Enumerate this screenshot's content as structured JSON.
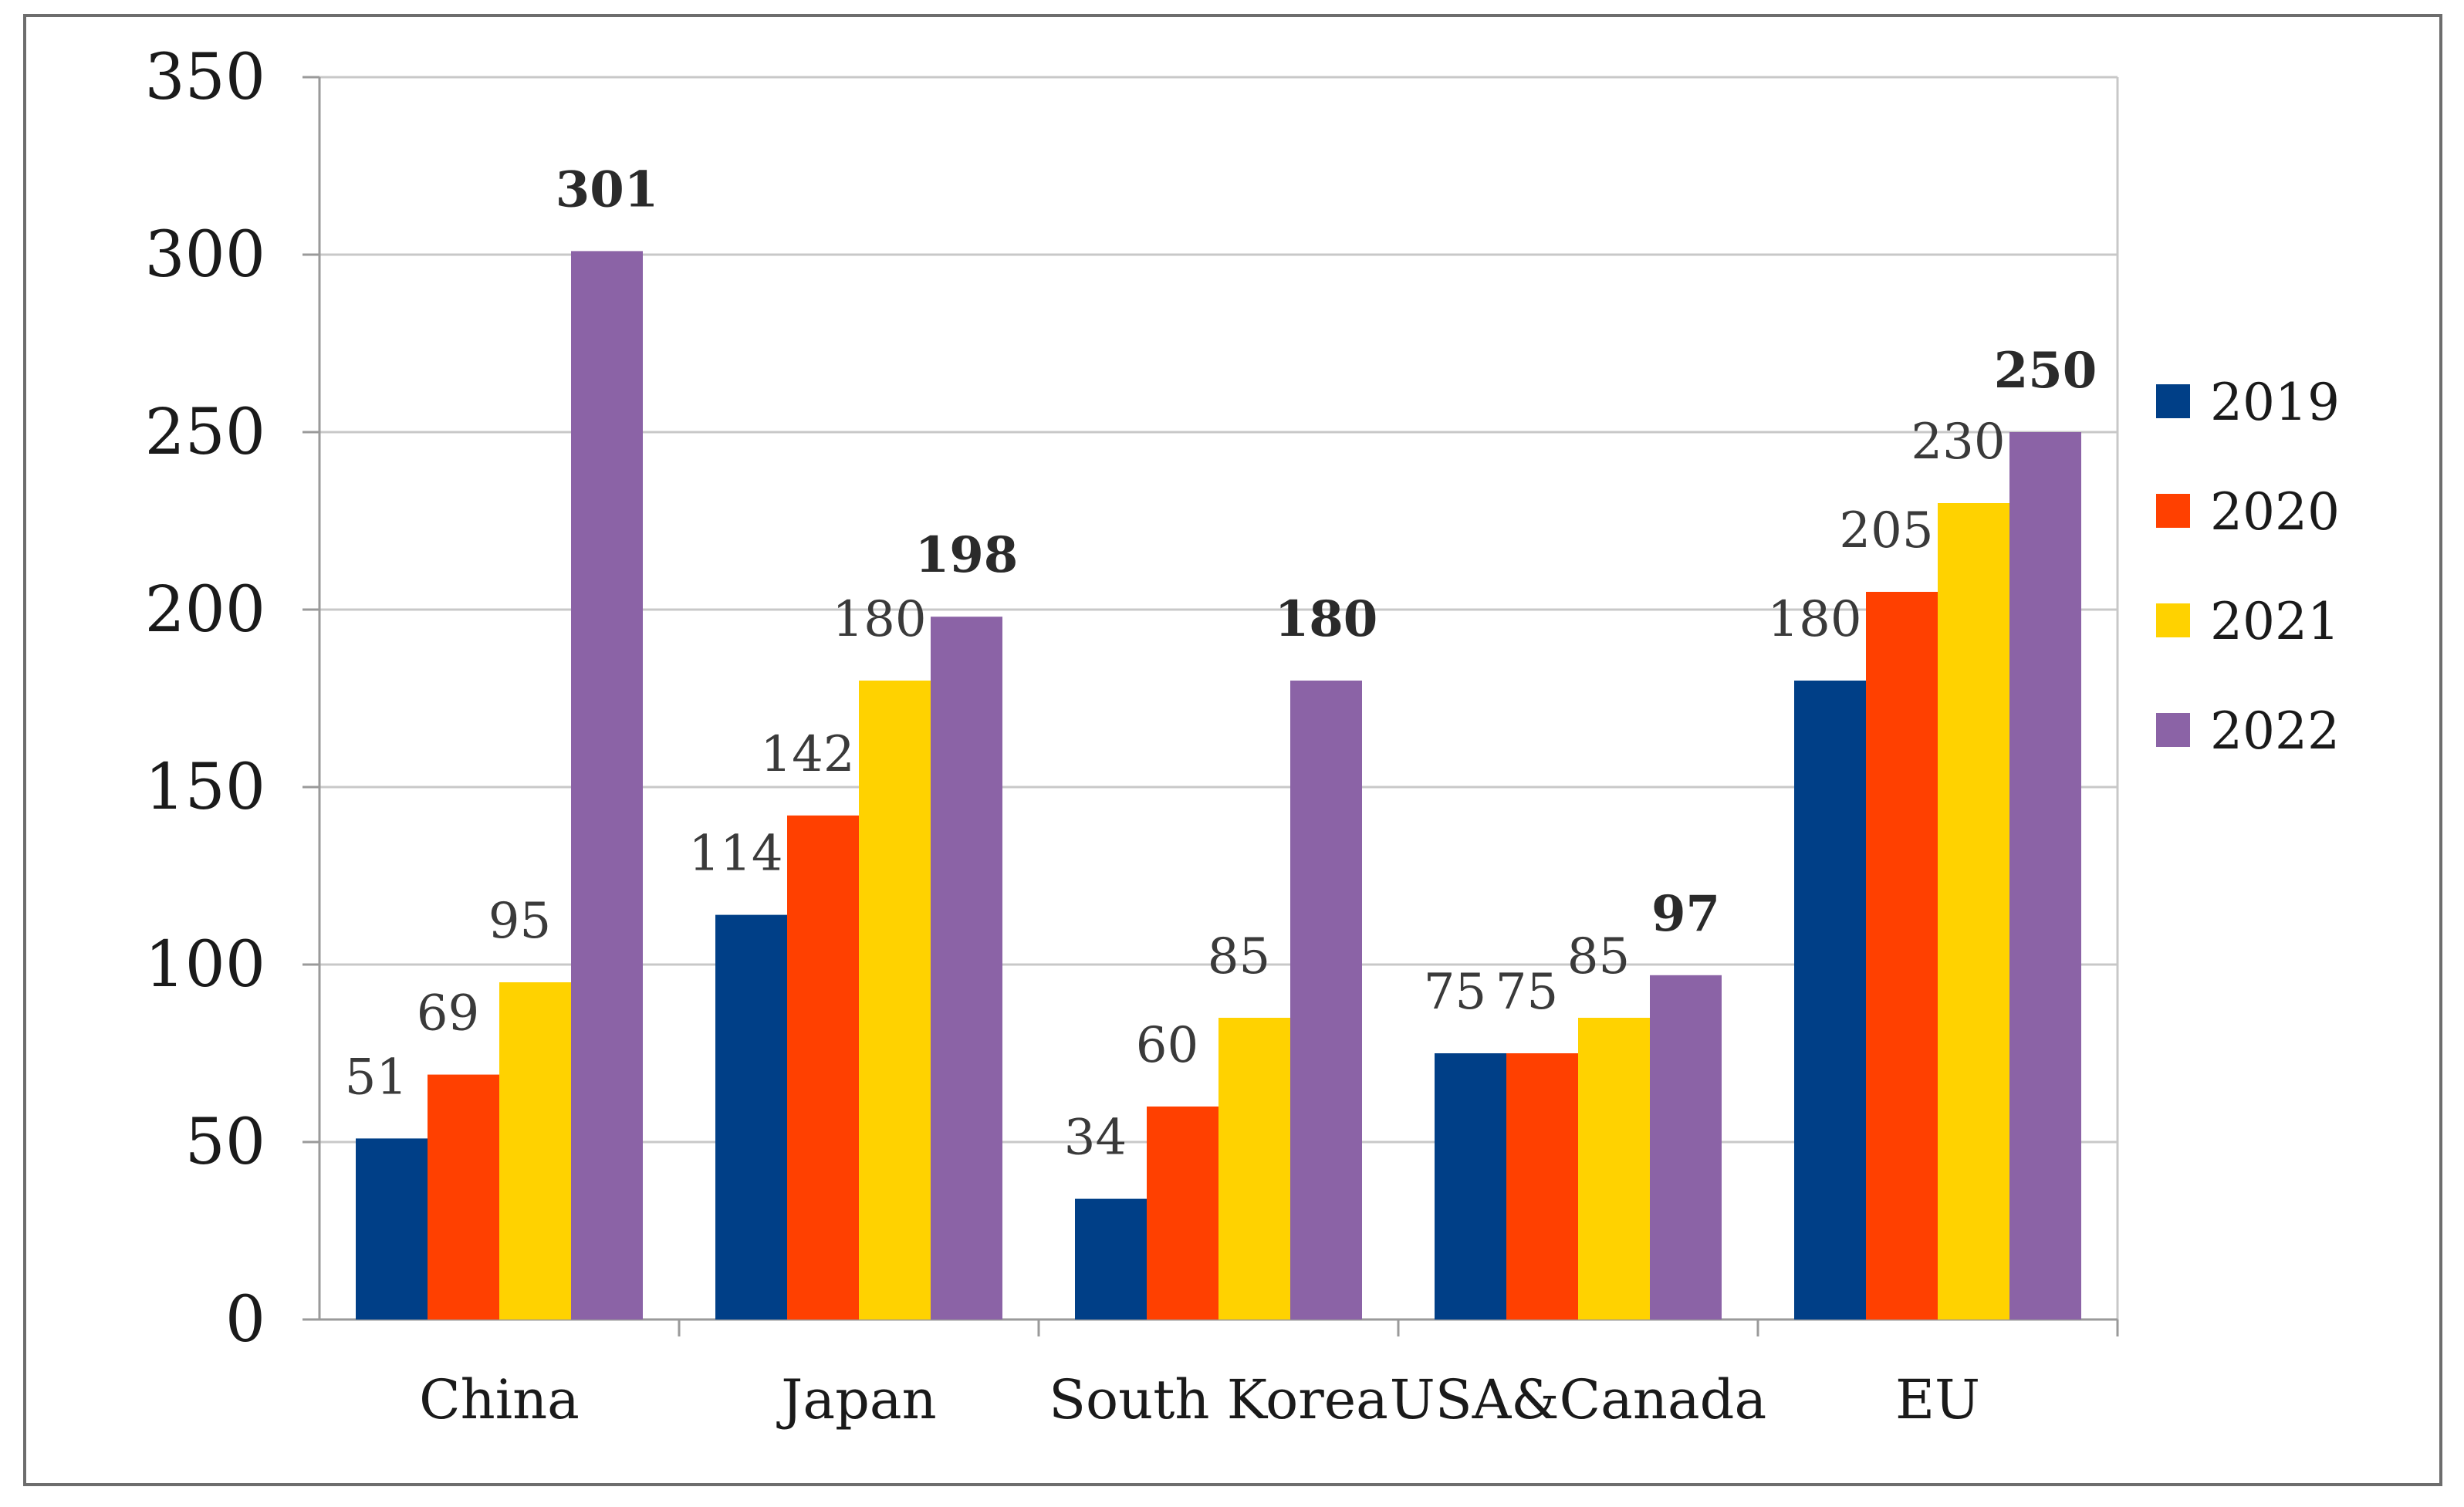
{
  "chart_data": {
    "type": "bar",
    "title": "",
    "xlabel": "",
    "ylabel": "",
    "ylim": [
      0,
      350
    ],
    "yticks": [
      0,
      50,
      100,
      150,
      200,
      250,
      300,
      350
    ],
    "grid": true,
    "legend_position": "right",
    "categories": [
      "China",
      "Japan",
      "South Korea",
      "USA&Canada",
      "EU"
    ],
    "series": [
      {
        "name": "2019",
        "color": "#003F87",
        "values": [
          51,
          114,
          34,
          75,
          180
        ]
      },
      {
        "name": "2020",
        "color": "#FF4000",
        "values": [
          69,
          142,
          60,
          75,
          205
        ]
      },
      {
        "name": "2021",
        "color": "#FFD200",
        "values": [
          95,
          180,
          85,
          85,
          230
        ]
      },
      {
        "name": "2022",
        "color": "#8B63A6",
        "values": [
          301,
          198,
          180,
          97,
          250
        ]
      }
    ],
    "bold_series": "2022"
  }
}
